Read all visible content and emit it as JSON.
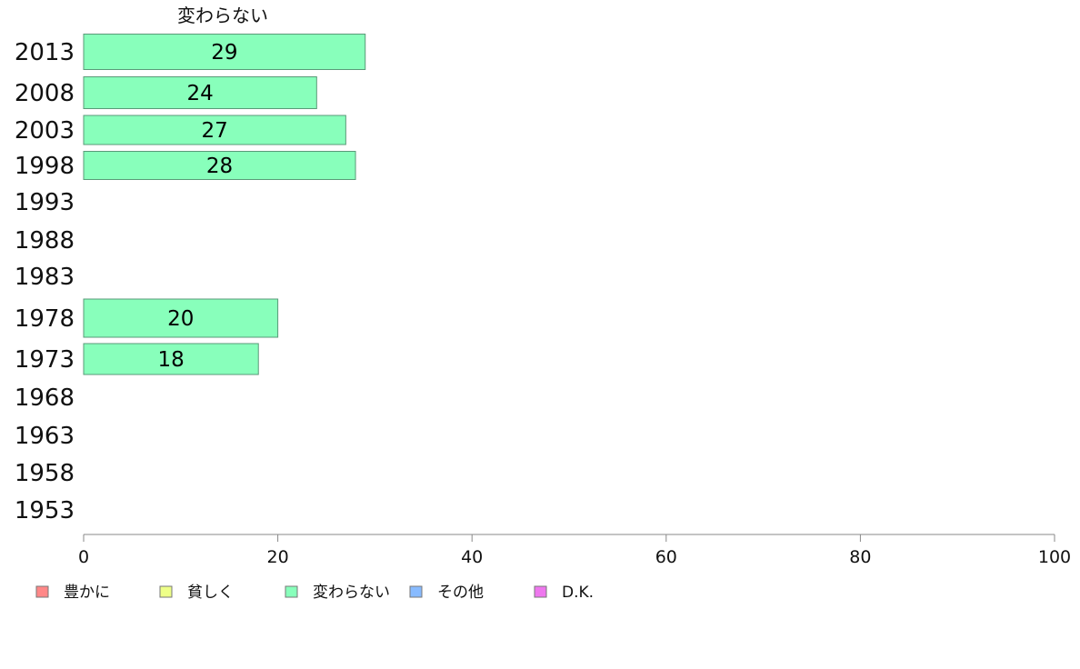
{
  "chart_data": {
    "type": "bar",
    "orientation": "horizontal",
    "series_title": "変わらない",
    "categories": [
      "2013",
      "2008",
      "2003",
      "1998",
      "1993",
      "1988",
      "1983",
      "1978",
      "1973",
      "1968",
      "1963",
      "1958",
      "1953"
    ],
    "series": [
      {
        "name": "変わらない",
        "color": "#88ffbb",
        "values": [
          29,
          24,
          27,
          28,
          null,
          null,
          null,
          20,
          18,
          null,
          null,
          null,
          null
        ]
      }
    ],
    "xlim": [
      0,
      100
    ],
    "xticks": [
      "0",
      "20",
      "40",
      "60",
      "80",
      "100"
    ],
    "legend": {
      "placement": "bottom-left",
      "items": [
        {
          "label": "豊かに",
          "color": "#ff8888"
        },
        {
          "label": "貧しく",
          "color": "#eeff88"
        },
        {
          "label": "変わらない",
          "color": "#88ffbb"
        },
        {
          "label": "その他",
          "color": "#88bbff"
        },
        {
          "label": "D.K.",
          "color": "#ee77ee"
        }
      ]
    },
    "grid": false
  }
}
